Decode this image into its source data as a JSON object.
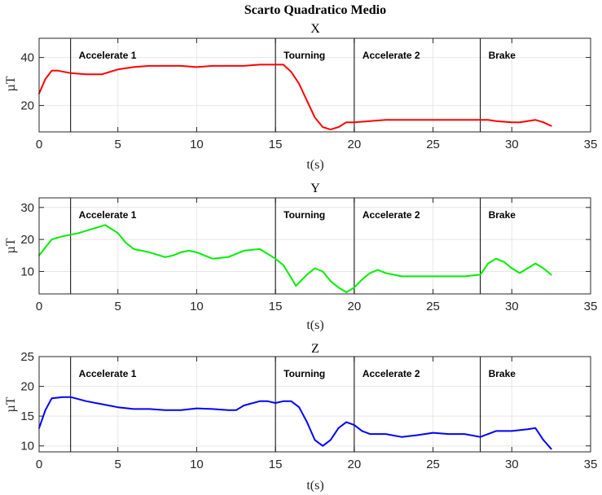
{
  "figure": {
    "title": "Scarto Quadratico Medio"
  },
  "chart_data": [
    {
      "type": "line",
      "title": "X",
      "xlabel": "t(s)",
      "ylabel": "µT",
      "xlim": [
        0,
        35
      ],
      "ylim": [
        9,
        48
      ],
      "xticks": [
        0,
        5,
        10,
        15,
        20,
        25,
        30,
        35
      ],
      "yticks": [
        20,
        40
      ],
      "grid": true,
      "color": "#ff0000",
      "phases": [
        {
          "x": 2,
          "label": "Accelerate 1"
        },
        {
          "x": 15,
          "label": "Tourning"
        },
        {
          "x": 20,
          "label": "Accelerate 2"
        },
        {
          "x": 28,
          "label": "Brake"
        }
      ],
      "series": [
        {
          "x": [
            0,
            0.4,
            0.8,
            1.2,
            2,
            3,
            4,
            5,
            6,
            7,
            8,
            9,
            10,
            11,
            12,
            13,
            14,
            15,
            15.5,
            16,
            16.5,
            17,
            17.5,
            18,
            18.5,
            19,
            19.5,
            20,
            21,
            22,
            23,
            24,
            25,
            26,
            27,
            28,
            28.5,
            29,
            30,
            30.5,
            31,
            31.5,
            32,
            32.5
          ],
          "y": [
            25,
            31,
            34.5,
            34.5,
            33.5,
            33,
            33,
            35,
            36,
            36.5,
            36.5,
            36.5,
            36,
            36.5,
            36.5,
            36.5,
            37,
            37,
            37,
            34,
            29,
            22,
            15,
            11,
            10,
            11,
            13,
            13,
            13.5,
            14,
            14,
            14,
            14,
            14,
            14,
            14,
            14,
            13.5,
            13,
            13,
            13.5,
            14,
            13,
            11.5
          ]
        }
      ]
    },
    {
      "type": "line",
      "title": "Y",
      "xlabel": "t(s)",
      "ylabel": "µT",
      "xlim": [
        0,
        35
      ],
      "ylim": [
        3,
        33
      ],
      "xticks": [
        0,
        5,
        10,
        15,
        20,
        25,
        30,
        35
      ],
      "yticks": [
        10,
        20,
        30
      ],
      "grid": true,
      "color": "#00ee00",
      "phases": [
        {
          "x": 2,
          "label": "Accelerate 1"
        },
        {
          "x": 15,
          "label": "Tourning"
        },
        {
          "x": 20,
          "label": "Accelerate 2"
        },
        {
          "x": 28,
          "label": "Brake"
        }
      ],
      "series": [
        {
          "x": [
            0,
            0.4,
            0.8,
            1.5,
            2.5,
            3.5,
            4.2,
            5,
            5.5,
            6,
            6.5,
            7,
            8,
            8.5,
            9,
            9.5,
            10,
            10.5,
            11,
            12,
            13,
            14,
            15,
            15.5,
            16,
            16.3,
            17,
            17.5,
            18,
            18.5,
            19,
            19.5,
            20,
            20.5,
            21,
            21.5,
            22,
            23,
            24,
            25,
            26,
            27,
            28,
            28.5,
            29,
            29.5,
            30,
            30.5,
            31,
            31.5,
            32,
            32.5
          ],
          "y": [
            15,
            17.5,
            20,
            21,
            22,
            23.5,
            24.5,
            22,
            19,
            17,
            16.5,
            16,
            14.5,
            15,
            16,
            16.5,
            16,
            15,
            14,
            14.5,
            16.5,
            17,
            14,
            12,
            8,
            5.5,
            9,
            11,
            10,
            7,
            5,
            3.5,
            5,
            7.5,
            9.5,
            10.5,
            9.5,
            8.5,
            8.5,
            8.5,
            8.5,
            8.5,
            9,
            12.5,
            14,
            13,
            11,
            9.5,
            11,
            12.5,
            11,
            9
          ]
        }
      ]
    },
    {
      "type": "line",
      "title": "Z",
      "xlabel": "t(s)",
      "ylabel": "µT",
      "xlim": [
        0,
        35
      ],
      "ylim": [
        9,
        25
      ],
      "xticks": [
        0,
        5,
        10,
        15,
        20,
        25,
        30,
        35
      ],
      "yticks": [
        10,
        15,
        20,
        25
      ],
      "grid": true,
      "color": "#0000ff",
      "phases": [
        {
          "x": 2,
          "label": "Accelerate 1"
        },
        {
          "x": 15,
          "label": "Tourning"
        },
        {
          "x": 20,
          "label": "Accelerate 2"
        },
        {
          "x": 28,
          "label": "Brake"
        }
      ],
      "series": [
        {
          "x": [
            0,
            0.4,
            0.8,
            1.5,
            2,
            3,
            4,
            5,
            6,
            7,
            8,
            9,
            10,
            11,
            12,
            12.5,
            13,
            14,
            14.5,
            15,
            15.5,
            16,
            16.5,
            17,
            17.5,
            18,
            18.5,
            19,
            19.5,
            20,
            20.5,
            21,
            22,
            23,
            24,
            25,
            26,
            27,
            28,
            29,
            30,
            31,
            31.5,
            32,
            32.5
          ],
          "y": [
            13,
            16,
            18,
            18.2,
            18.2,
            17.5,
            17,
            16.5,
            16.2,
            16.2,
            16,
            16,
            16.3,
            16.2,
            16,
            16,
            16.8,
            17.5,
            17.5,
            17.2,
            17.5,
            17.5,
            16.5,
            14,
            11,
            10,
            11,
            13,
            14,
            13.5,
            12.5,
            12,
            12,
            11.5,
            11.8,
            12.2,
            12,
            12,
            11.5,
            12.5,
            12.5,
            12.8,
            13,
            11,
            9.5
          ]
        }
      ]
    }
  ]
}
